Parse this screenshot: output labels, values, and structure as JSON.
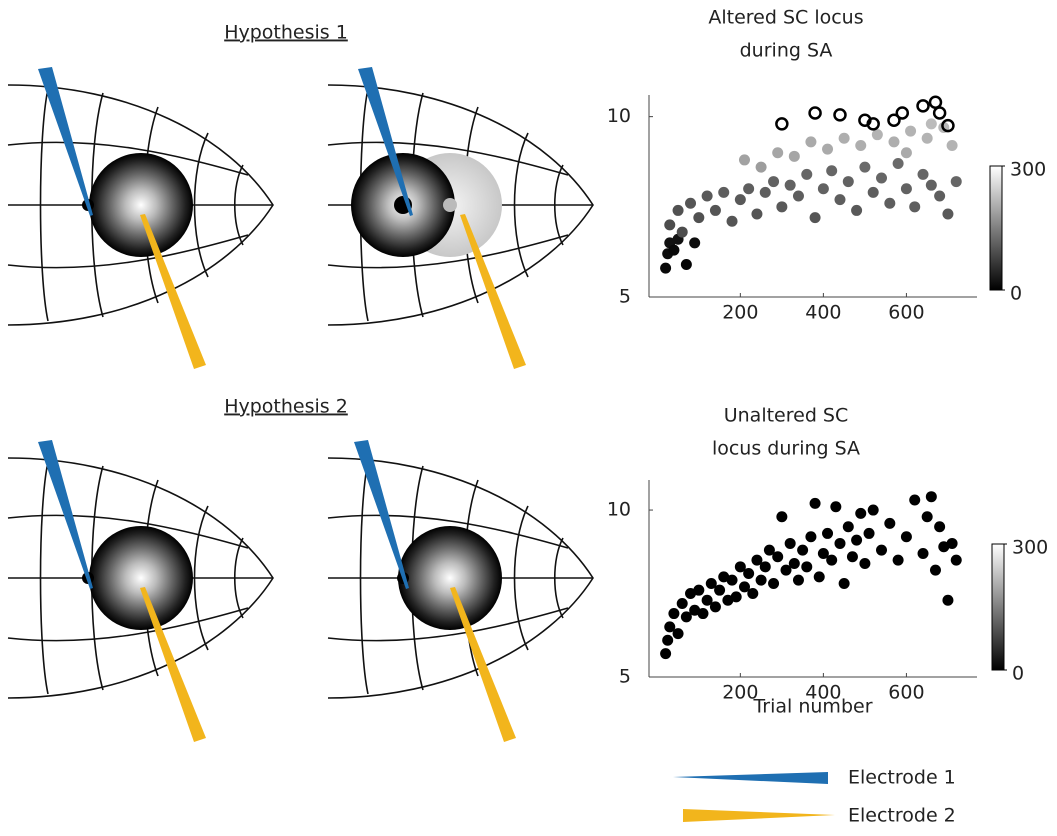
{
  "hypotheses": [
    "Hypothesis 1",
    "Hypothesis 2"
  ],
  "legend": [
    {
      "name": "Electrode 1",
      "color": "#1f6fb2"
    },
    {
      "name": "Electrode 2",
      "color": "#f2b51c"
    }
  ],
  "chart_data": [
    {
      "type": "scatter",
      "title": [
        "Altered SC locus",
        "during SA"
      ],
      "xlim": [
        -20,
        770
      ],
      "ylim": [
        5,
        10.6
      ],
      "xticks": [
        200,
        400,
        600
      ],
      "yticks": [
        5,
        10
      ],
      "colorbar": {
        "lim": [
          0,
          300
        ],
        "ticks": [
          0,
          300
        ],
        "colors": [
          "#000000",
          "#ffffff"
        ]
      },
      "series": [
        {
          "marker": "filled",
          "x": [
            20,
            25,
            30,
            40,
            50,
            70,
            90,
            30,
            50,
            60,
            80,
            100,
            120,
            140,
            160,
            180,
            200,
            220,
            240,
            260,
            280,
            300,
            320,
            340,
            360,
            380,
            400,
            420,
            440,
            460,
            480,
            500,
            520,
            540,
            560,
            580,
            600,
            620,
            640,
            660,
            680,
            700,
            720,
            210,
            250,
            290,
            330,
            370,
            410,
            450,
            490,
            530,
            570,
            610,
            650,
            690,
            710,
            660,
            600
          ],
          "y": [
            5.8,
            6.2,
            6.5,
            6.3,
            6.6,
            5.9,
            6.5,
            7.0,
            7.4,
            6.8,
            7.6,
            7.2,
            7.8,
            7.4,
            7.9,
            7.1,
            7.7,
            8.0,
            7.3,
            7.9,
            8.2,
            7.5,
            8.1,
            7.8,
            8.4,
            7.2,
            8.0,
            8.5,
            7.7,
            8.2,
            7.4,
            8.6,
            7.9,
            8.3,
            7.6,
            8.7,
            8.0,
            7.5,
            8.4,
            8.1,
            7.8,
            7.3,
            8.2,
            8.8,
            8.6,
            9.0,
            8.9,
            9.3,
            9.1,
            9.4,
            9.2,
            9.5,
            9.3,
            9.6,
            9.4,
            9.7,
            9.2,
            9.8,
            9.0
          ],
          "c": [
            10,
            15,
            20,
            10,
            20,
            5,
            15,
            90,
            95,
            90,
            100,
            95,
            105,
            100,
            110,
            100,
            105,
            110,
            100,
            110,
            115,
            105,
            115,
            110,
            120,
            100,
            115,
            120,
            110,
            115,
            105,
            125,
            110,
            120,
            110,
            125,
            115,
            110,
            120,
            115,
            110,
            105,
            120,
            190,
            185,
            195,
            195,
            200,
            200,
            205,
            205,
            210,
            205,
            210,
            210,
            215,
            210,
            220,
            200
          ]
        },
        {
          "marker": "open",
          "color": "#000000",
          "x": [
            300,
            380,
            440,
            500,
            520,
            570,
            590,
            640,
            670,
            680,
            700
          ],
          "y": [
            9.8,
            10.1,
            10.05,
            9.9,
            9.8,
            9.9,
            10.1,
            10.3,
            10.4,
            10.1,
            9.75
          ]
        }
      ]
    },
    {
      "type": "scatter",
      "title": [
        "Unaltered SC",
        "locus during SA"
      ],
      "xlabel": "Trial number",
      "xlim": [
        -20,
        770
      ],
      "ylim": [
        5,
        10.9
      ],
      "xticks": [
        200,
        400,
        600
      ],
      "yticks": [
        5,
        10
      ],
      "colorbar": {
        "lim": [
          0,
          300
        ],
        "ticks": [
          0,
          300
        ],
        "colors": [
          "#000000",
          "#ffffff"
        ]
      },
      "series": [
        {
          "marker": "filled",
          "color": "#000000",
          "x": [
            20,
            25,
            30,
            40,
            50,
            60,
            70,
            80,
            90,
            100,
            110,
            120,
            130,
            140,
            150,
            160,
            170,
            180,
            190,
            200,
            210,
            220,
            230,
            240,
            250,
            260,
            270,
            280,
            290,
            300,
            310,
            320,
            330,
            340,
            350,
            360,
            370,
            380,
            390,
            400,
            410,
            420,
            430,
            440,
            450,
            460,
            470,
            480,
            490,
            500,
            510,
            520,
            540,
            560,
            580,
            600,
            620,
            640,
            650,
            660,
            670,
            680,
            690,
            700,
            710,
            720
          ],
          "y": [
            5.7,
            6.1,
            6.5,
            6.9,
            6.3,
            7.2,
            6.8,
            7.5,
            7.0,
            7.6,
            6.9,
            7.3,
            7.8,
            7.1,
            7.6,
            8.0,
            7.3,
            7.9,
            7.4,
            8.3,
            7.7,
            8.1,
            7.5,
            8.5,
            7.9,
            8.3,
            8.8,
            7.8,
            8.6,
            9.8,
            8.2,
            9.0,
            8.4,
            7.9,
            8.8,
            8.3,
            9.2,
            10.2,
            8.0,
            8.7,
            9.3,
            8.5,
            10.1,
            9.0,
            7.8,
            9.5,
            8.6,
            9.1,
            9.9,
            8.4,
            9.3,
            10.0,
            8.8,
            9.6,
            8.5,
            9.2,
            10.3,
            8.7,
            9.8,
            10.4,
            8.2,
            9.5,
            8.9,
            7.3,
            9.0,
            8.5
          ]
        }
      ]
    }
  ]
}
